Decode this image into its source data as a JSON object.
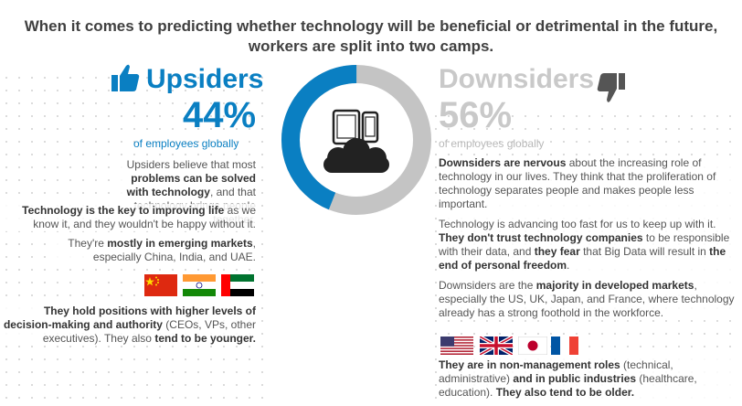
{
  "headline": {
    "line1": "When it comes to predicting whether technology will be beneficial or detrimental in the future,",
    "line2": "workers are split into two camps."
  },
  "upsiders": {
    "title": "Upsiders",
    "percent": "44%",
    "percent_value": 44,
    "subtitle": "of employees globally",
    "p1": {
      "a": "Upsiders believe that most ",
      "b": "problems can be solved with technology",
      "c": ", and that technology brings people together."
    },
    "p2": {
      "a": "Technology is the key to improving life",
      "b": " as we know it, and they wouldn't be happy without it."
    },
    "p3": {
      "a": "They're ",
      "b": "mostly in emerging markets",
      "c": ", especially China, India, and UAE."
    },
    "flags": [
      "China",
      "India",
      "UAE"
    ],
    "p4": {
      "a": "They hold positions with higher levels of decision-making and authority",
      "b": " (CEOs, VPs, other executives). They also ",
      "c": "tend to be younger."
    }
  },
  "downsiders": {
    "title": "Downsiders",
    "percent": "56%",
    "percent_value": 56,
    "subtitle": "of employees globally",
    "p1": {
      "a": "Downsiders are nervous",
      "b": " about the increasing role of technology in our lives. They think that the proliferation of technology separates people and makes people less important."
    },
    "p2": {
      "a": "Technology is advancing too fast for us to keep up with it. ",
      "b": "They don't trust technology companies",
      "c": " to be responsible with their data, and ",
      "d": "they fear",
      "e": " that Big Data will result in ",
      "f": "the end of personal freedom",
      "g": "."
    },
    "p3": {
      "a": "Downsiders are the ",
      "b": "majority in developed markets",
      "c": ", especially the US, UK, Japan, and France, where technology already has a strong foothold in the workforce."
    },
    "flags": [
      "US",
      "UK",
      "Japan",
      "France"
    ],
    "p4": {
      "a": "They are in non-management roles",
      "b": " (technical, administrative) ",
      "c": "and in public industries",
      "d": " (healthcare, education). ",
      "e": "They also tend to be older."
    }
  },
  "colors": {
    "blue": "#0a7fc2",
    "gray": "#c9c9c9",
    "dark": "#222222"
  },
  "icons": [
    "thumbs-up-icon",
    "thumbs-down-icon",
    "tablet-icon",
    "phone-icon",
    "cloud-icon"
  ]
}
